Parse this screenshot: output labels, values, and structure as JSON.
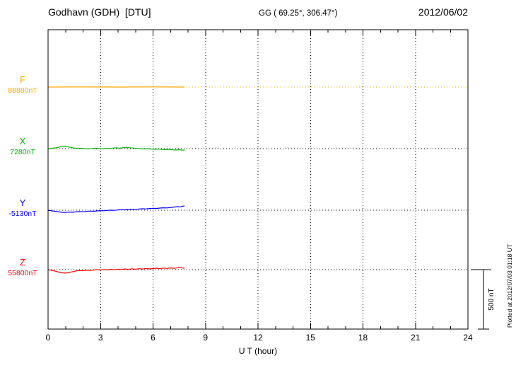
{
  "header": {
    "station_title": "Godhavn (GDH)  [DTU]",
    "geo_coords": "GG ( 69.25°, 306.47°)",
    "date": "2012/06/02"
  },
  "axis": {
    "xlabel": "U T (hour)",
    "tick_labels": [
      "0",
      "3",
      "6",
      "9",
      "12",
      "15",
      "18",
      "21",
      "24"
    ]
  },
  "scale_bar_label": "500 nT",
  "plotted_note": "Plotted at 2012/07/03 01:18 UT",
  "chart_data": {
    "type": "line",
    "title": "Godhavn (GDH) [DTU] magnetogram 2012/06/02",
    "xlabel": "U T (hour)",
    "x_range": [
      0,
      24
    ],
    "x_ticks": [
      0,
      3,
      6,
      9,
      12,
      15,
      18,
      21,
      24
    ],
    "scale_bar_nT": 500,
    "grid": "dotted vertical at 3-hour ticks, dotted horizontal at each component baseline",
    "series": [
      {
        "name": "F",
        "baseline_label": "88880nT",
        "baseline_value": 88880,
        "color": "#FFA500",
        "baseline_color": "#FFA500",
        "points": [
          [
            0,
            88880
          ],
          [
            2,
            88881
          ],
          [
            4,
            88880
          ],
          [
            6,
            88881
          ],
          [
            7.8,
            88880
          ]
        ]
      },
      {
        "name": "X",
        "baseline_label": "7280nT",
        "baseline_value": 7280,
        "color": "#00B400",
        "baseline_color": "#000000",
        "points": [
          [
            0,
            7281
          ],
          [
            0.25,
            7283
          ],
          [
            0.5,
            7288
          ],
          [
            0.75,
            7297
          ],
          [
            1.0,
            7301
          ],
          [
            1.15,
            7295
          ],
          [
            1.3,
            7290
          ],
          [
            1.5,
            7285
          ],
          [
            1.7,
            7281
          ],
          [
            1.9,
            7283
          ],
          [
            2.1,
            7279
          ],
          [
            2.3,
            7277
          ],
          [
            2.5,
            7281
          ],
          [
            2.7,
            7284
          ],
          [
            2.9,
            7281
          ],
          [
            3.1,
            7278
          ],
          [
            3.3,
            7282
          ],
          [
            3.5,
            7280
          ],
          [
            3.7,
            7284
          ],
          [
            3.9,
            7287
          ],
          [
            4.1,
            7283
          ],
          [
            4.3,
            7288
          ],
          [
            4.5,
            7291
          ],
          [
            4.7,
            7287
          ],
          [
            4.9,
            7284
          ],
          [
            5.1,
            7281
          ],
          [
            5.3,
            7279
          ],
          [
            5.5,
            7277
          ],
          [
            5.7,
            7280
          ],
          [
            5.9,
            7276
          ],
          [
            6.1,
            7274
          ],
          [
            6.3,
            7277
          ],
          [
            6.5,
            7273
          ],
          [
            6.7,
            7271
          ],
          [
            6.9,
            7274
          ],
          [
            7.1,
            7270
          ],
          [
            7.3,
            7268
          ],
          [
            7.5,
            7271
          ],
          [
            7.65,
            7267
          ],
          [
            7.8,
            7268
          ]
        ]
      },
      {
        "name": "Y",
        "baseline_label": "-5130nT",
        "baseline_value": -5130,
        "color": "#0000FF",
        "baseline_color": "#000000",
        "points": [
          [
            0,
            -5131
          ],
          [
            0.25,
            -5136
          ],
          [
            0.5,
            -5142
          ],
          [
            0.75,
            -5147
          ],
          [
            1.0,
            -5149
          ],
          [
            1.2,
            -5146
          ],
          [
            1.4,
            -5147
          ],
          [
            1.6,
            -5144
          ],
          [
            1.8,
            -5142
          ],
          [
            2.0,
            -5143
          ],
          [
            2.2,
            -5140
          ],
          [
            2.4,
            -5138
          ],
          [
            2.6,
            -5139
          ],
          [
            2.8,
            -5136
          ],
          [
            3.0,
            -5134
          ],
          [
            3.2,
            -5135
          ],
          [
            3.4,
            -5132
          ],
          [
            3.6,
            -5130
          ],
          [
            3.8,
            -5131
          ],
          [
            4.0,
            -5128
          ],
          [
            4.2,
            -5126
          ],
          [
            4.4,
            -5127
          ],
          [
            4.6,
            -5124
          ],
          [
            4.8,
            -5122
          ],
          [
            5.0,
            -5123
          ],
          [
            5.2,
            -5120
          ],
          [
            5.4,
            -5118
          ],
          [
            5.6,
            -5119
          ],
          [
            5.8,
            -5116
          ],
          [
            6.0,
            -5114
          ],
          [
            6.2,
            -5115
          ],
          [
            6.4,
            -5112
          ],
          [
            6.6,
            -5110
          ],
          [
            6.8,
            -5111
          ],
          [
            7.0,
            -5107
          ],
          [
            7.2,
            -5104
          ],
          [
            7.4,
            -5100
          ],
          [
            7.55,
            -5102
          ],
          [
            7.7,
            -5096
          ],
          [
            7.8,
            -5094
          ]
        ]
      },
      {
        "name": "Z",
        "baseline_label": "55800nT",
        "baseline_value": 55800,
        "color": "#FF0000",
        "baseline_color": "#000000",
        "points": [
          [
            0,
            55799
          ],
          [
            0.2,
            55794
          ],
          [
            0.4,
            55788
          ],
          [
            0.6,
            55780
          ],
          [
            0.8,
            55773
          ],
          [
            1.0,
            55771
          ],
          [
            1.2,
            55776
          ],
          [
            1.4,
            55783
          ],
          [
            1.6,
            55789
          ],
          [
            1.8,
            55793
          ],
          [
            2.0,
            55790
          ],
          [
            2.2,
            55795
          ],
          [
            2.4,
            55792
          ],
          [
            2.6,
            55797
          ],
          [
            2.8,
            55800
          ],
          [
            3.0,
            55796
          ],
          [
            3.2,
            55801
          ],
          [
            3.4,
            55798
          ],
          [
            3.6,
            55803
          ],
          [
            3.8,
            55799
          ],
          [
            4.0,
            55804
          ],
          [
            4.2,
            55801
          ],
          [
            4.4,
            55806
          ],
          [
            4.6,
            55802
          ],
          [
            4.8,
            55807
          ],
          [
            5.0,
            55803
          ],
          [
            5.2,
            55808
          ],
          [
            5.4,
            55805
          ],
          [
            5.6,
            55810
          ],
          [
            5.8,
            55806
          ],
          [
            6.0,
            55809
          ],
          [
            6.2,
            55812
          ],
          [
            6.4,
            55808
          ],
          [
            6.6,
            55813
          ],
          [
            6.8,
            55810
          ],
          [
            7.0,
            55814
          ],
          [
            7.2,
            55811
          ],
          [
            7.4,
            55816
          ],
          [
            7.55,
            55820
          ],
          [
            7.7,
            55812
          ],
          [
            7.8,
            55814
          ]
        ]
      }
    ]
  }
}
